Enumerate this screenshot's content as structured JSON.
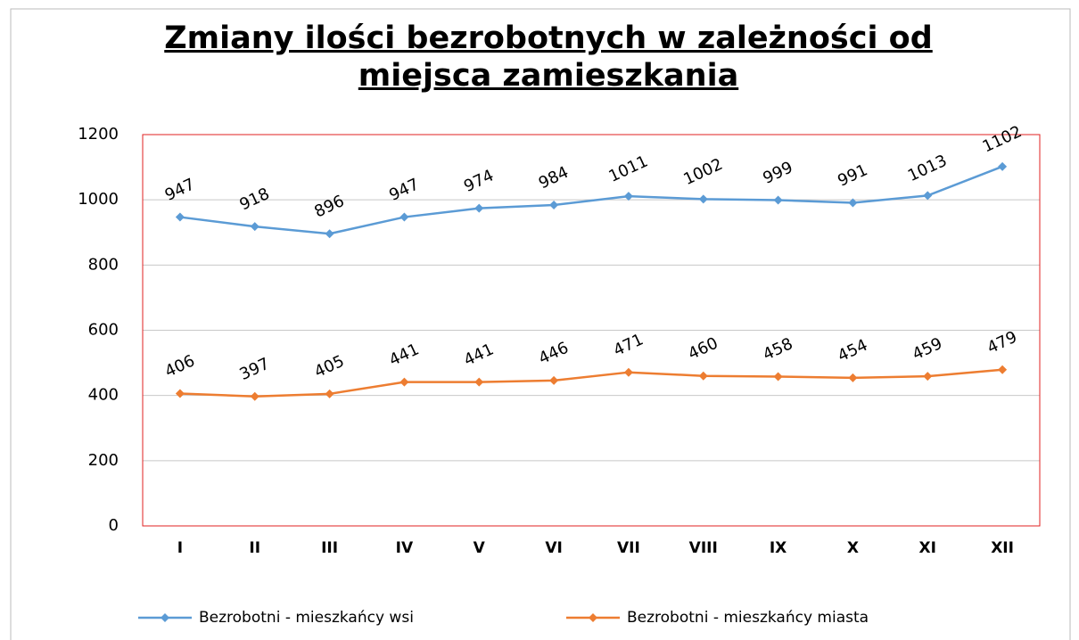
{
  "chart_data": {
    "type": "line",
    "title": "Zmiany ilości bezrobotnych w zależności od miejsca zamieszkania",
    "categories": [
      "I",
      "II",
      "III",
      "IV",
      "V",
      "VI",
      "VII",
      "VIII",
      "IX",
      "X",
      "XI",
      "XII"
    ],
    "series": [
      {
        "name": "Bezrobotni - mieszkańcy wsi",
        "color": "#5b9bd5",
        "values": [
          947,
          918,
          896,
          947,
          974,
          984,
          1011,
          1002,
          999,
          991,
          1013,
          1102
        ]
      },
      {
        "name": "Bezrobotni - mieszkańcy miasta",
        "color": "#ed7d31",
        "values": [
          406,
          397,
          405,
          441,
          441,
          446,
          471,
          460,
          458,
          454,
          459,
          479
        ]
      }
    ],
    "ylim": [
      0,
      1200
    ],
    "yticks": [
      0,
      200,
      400,
      600,
      800,
      1000,
      1200
    ],
    "grid": true,
    "legend": "bottom"
  }
}
